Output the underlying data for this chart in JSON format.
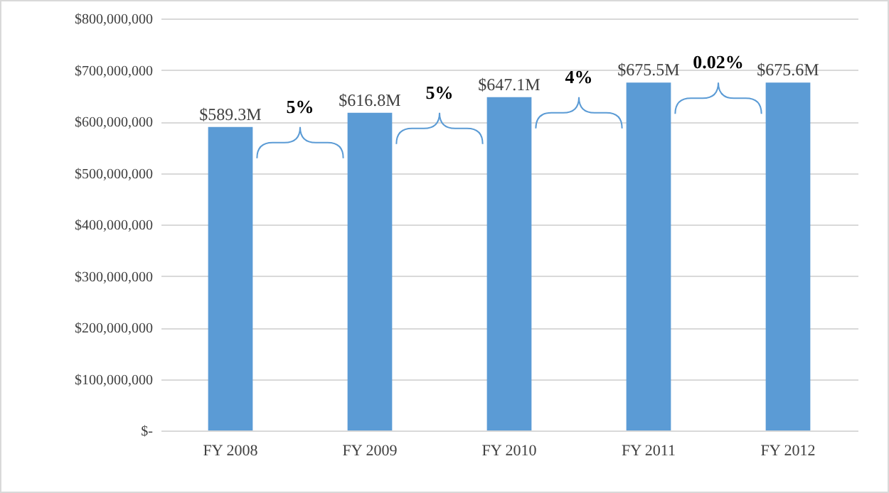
{
  "chart_data": {
    "type": "bar",
    "categories": [
      "FY 2008",
      "FY 2009",
      "FY 2010",
      "FY 2011",
      "FY 2012"
    ],
    "values": [
      589300000,
      616800000,
      647100000,
      675500000,
      675600000
    ],
    "value_labels": [
      "$589.3M",
      "$616.8M",
      "$647.1M",
      "$675.5M",
      "$675.6M"
    ],
    "color": "#5b9bd5",
    "ylim": [
      0,
      800000000
    ],
    "yticks": [
      {
        "value": 0,
        "label": "$-"
      },
      {
        "value": 100000000,
        "label": "$100,000,000"
      },
      {
        "value": 200000000,
        "label": "$200,000,000"
      },
      {
        "value": 300000000,
        "label": "$300,000,000"
      },
      {
        "value": 400000000,
        "label": "$400,000,000"
      },
      {
        "value": 500000000,
        "label": "$500,000,000"
      },
      {
        "value": 600000000,
        "label": "$600,000,000"
      },
      {
        "value": 700000000,
        "label": "$700,000,000"
      },
      {
        "value": 800000000,
        "label": "$800,000,000"
      }
    ],
    "grid": "y",
    "annotations": [
      "5%",
      "5%",
      "4%",
      "0.02%"
    ]
  }
}
